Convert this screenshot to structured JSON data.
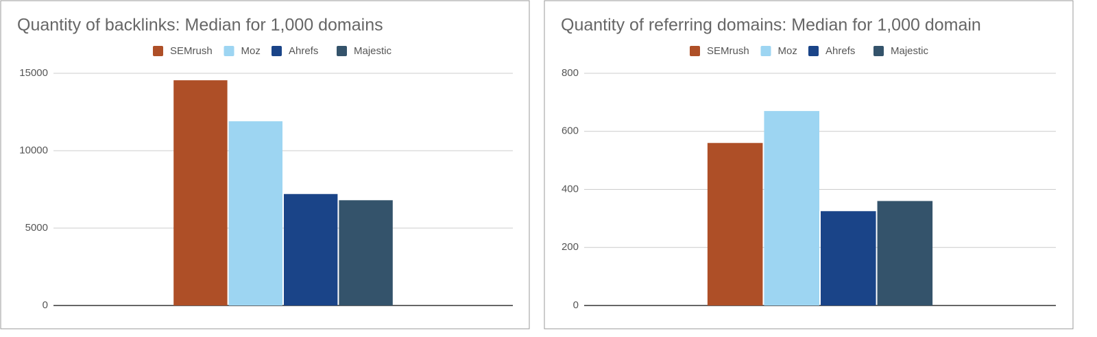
{
  "chart_data": [
    {
      "type": "bar",
      "title": "Quantity of backlinks: Median for 1,000 domains",
      "categories": [
        null
      ],
      "series": [
        {
          "name": "SEMrush",
          "color": "#ae4f27",
          "values": [
            14550
          ]
        },
        {
          "name": "Moz",
          "color": "#9dd5f2",
          "values": [
            11900
          ]
        },
        {
          "name": "Ahrefs",
          "color": "#1a4488",
          "values": [
            7200
          ]
        },
        {
          "name": "Majestic",
          "color": "#34536b",
          "values": [
            6800
          ]
        }
      ],
      "ylim": [
        0,
        15000
      ],
      "yticks": [
        0,
        5000,
        10000,
        15000
      ],
      "grid": true,
      "legend": "top"
    },
    {
      "type": "bar",
      "title": "Quantity of referring domains: Median for 1,000 domain",
      "categories": [
        null
      ],
      "series": [
        {
          "name": "SEMrush",
          "color": "#ae4f27",
          "values": [
            560
          ]
        },
        {
          "name": "Moz",
          "color": "#9dd5f2",
          "values": [
            670
          ]
        },
        {
          "name": "Ahrefs",
          "color": "#1a4488",
          "values": [
            325
          ]
        },
        {
          "name": "Majestic",
          "color": "#34536b",
          "values": [
            360
          ]
        }
      ],
      "ylim": [
        0,
        800
      ],
      "yticks": [
        0,
        200,
        400,
        600,
        800
      ],
      "grid": true,
      "legend": "top"
    }
  ]
}
